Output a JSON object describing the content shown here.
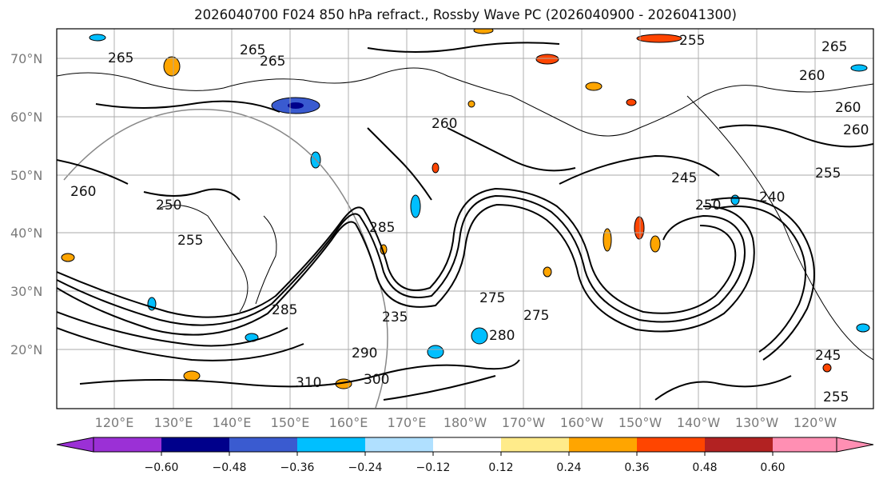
{
  "title": "2026040700 F024 850 hPa refract., Rossby Wave PC (2026040900 - 2026041300)",
  "lat_labels": [
    "70°N",
    "60°N",
    "50°N",
    "40°N",
    "30°N",
    "20°N"
  ],
  "lon_labels": [
    "120°E",
    "130°E",
    "140°E",
    "150°E",
    "160°E",
    "170°E",
    "180°W",
    "170°W",
    "160°W",
    "150°W",
    "140°W",
    "130°W",
    "120°W"
  ],
  "contour_labels": [
    "265",
    "265",
    "255",
    "260",
    "265",
    "260",
    "260",
    "255",
    "250",
    "255",
    "260",
    "285",
    "245",
    "250",
    "240",
    "275",
    "275",
    "280",
    "285",
    "290",
    "300",
    "310",
    "235",
    "245",
    "265",
    "260",
    "255"
  ],
  "colorbar": {
    "colors": [
      "#9b30d6",
      "#00008b",
      "#3a5bd0",
      "#00bfff",
      "#b0e0ff",
      "#ffffff",
      "#ffeb8a",
      "#ffa500",
      "#ff4500",
      "#b22222",
      "#ff8fb3"
    ],
    "tick_labels": [
      "−0.60",
      "−0.48",
      "−0.36",
      "−0.24",
      "−0.12",
      "0.12",
      "0.24",
      "0.36",
      "0.48",
      "0.60"
    ]
  }
}
